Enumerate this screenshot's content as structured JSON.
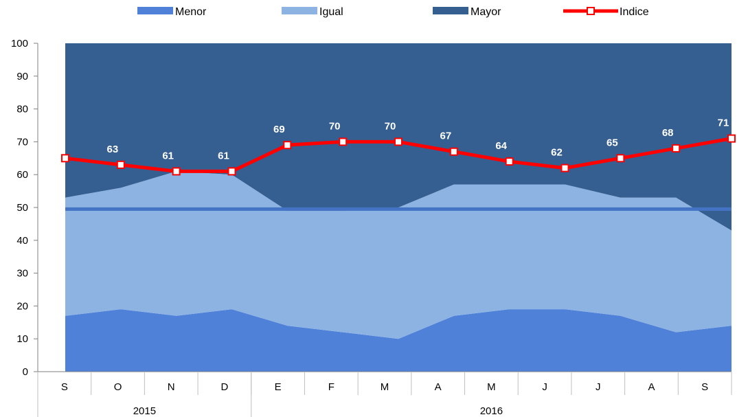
{
  "chart_data": {
    "type": "area",
    "stacked": true,
    "ylim": [
      0,
      100
    ],
    "yticks": [
      0,
      10,
      20,
      30,
      40,
      50,
      60,
      70,
      80,
      90,
      100
    ],
    "categories": [
      "S",
      "O",
      "N",
      "D",
      "E",
      "F",
      "M",
      "A",
      "M",
      "J",
      "J",
      "A",
      "S"
    ],
    "year_groups": [
      {
        "label": "2015",
        "start": 0,
        "end": 3
      },
      {
        "label": "2016",
        "start": 4,
        "end": 12
      }
    ],
    "series": [
      {
        "name": "Menor",
        "type": "area",
        "color": "#4f81d9",
        "values": [
          17,
          19,
          17,
          19,
          14,
          12,
          10,
          17,
          19,
          19,
          17,
          12,
          14
        ]
      },
      {
        "name": "Igual",
        "type": "area",
        "color": "#8db3e2",
        "values": [
          36,
          37,
          44,
          41,
          35,
          37,
          40,
          40,
          38,
          38,
          36,
          41,
          29
        ]
      },
      {
        "name": "Mayor",
        "type": "area",
        "color": "#365f91",
        "values": [
          47,
          44,
          39,
          40,
          51,
          51,
          50,
          43,
          43,
          43,
          47,
          47,
          57
        ]
      },
      {
        "name": "Indice",
        "type": "line",
        "color": "#ff0000",
        "values": [
          65,
          63,
          61,
          61,
          69,
          70,
          70,
          67,
          64,
          62,
          65,
          68,
          71
        ]
      }
    ],
    "reference_line": {
      "value": 49.5,
      "color": "#4472c4"
    },
    "legend_position": "top"
  }
}
